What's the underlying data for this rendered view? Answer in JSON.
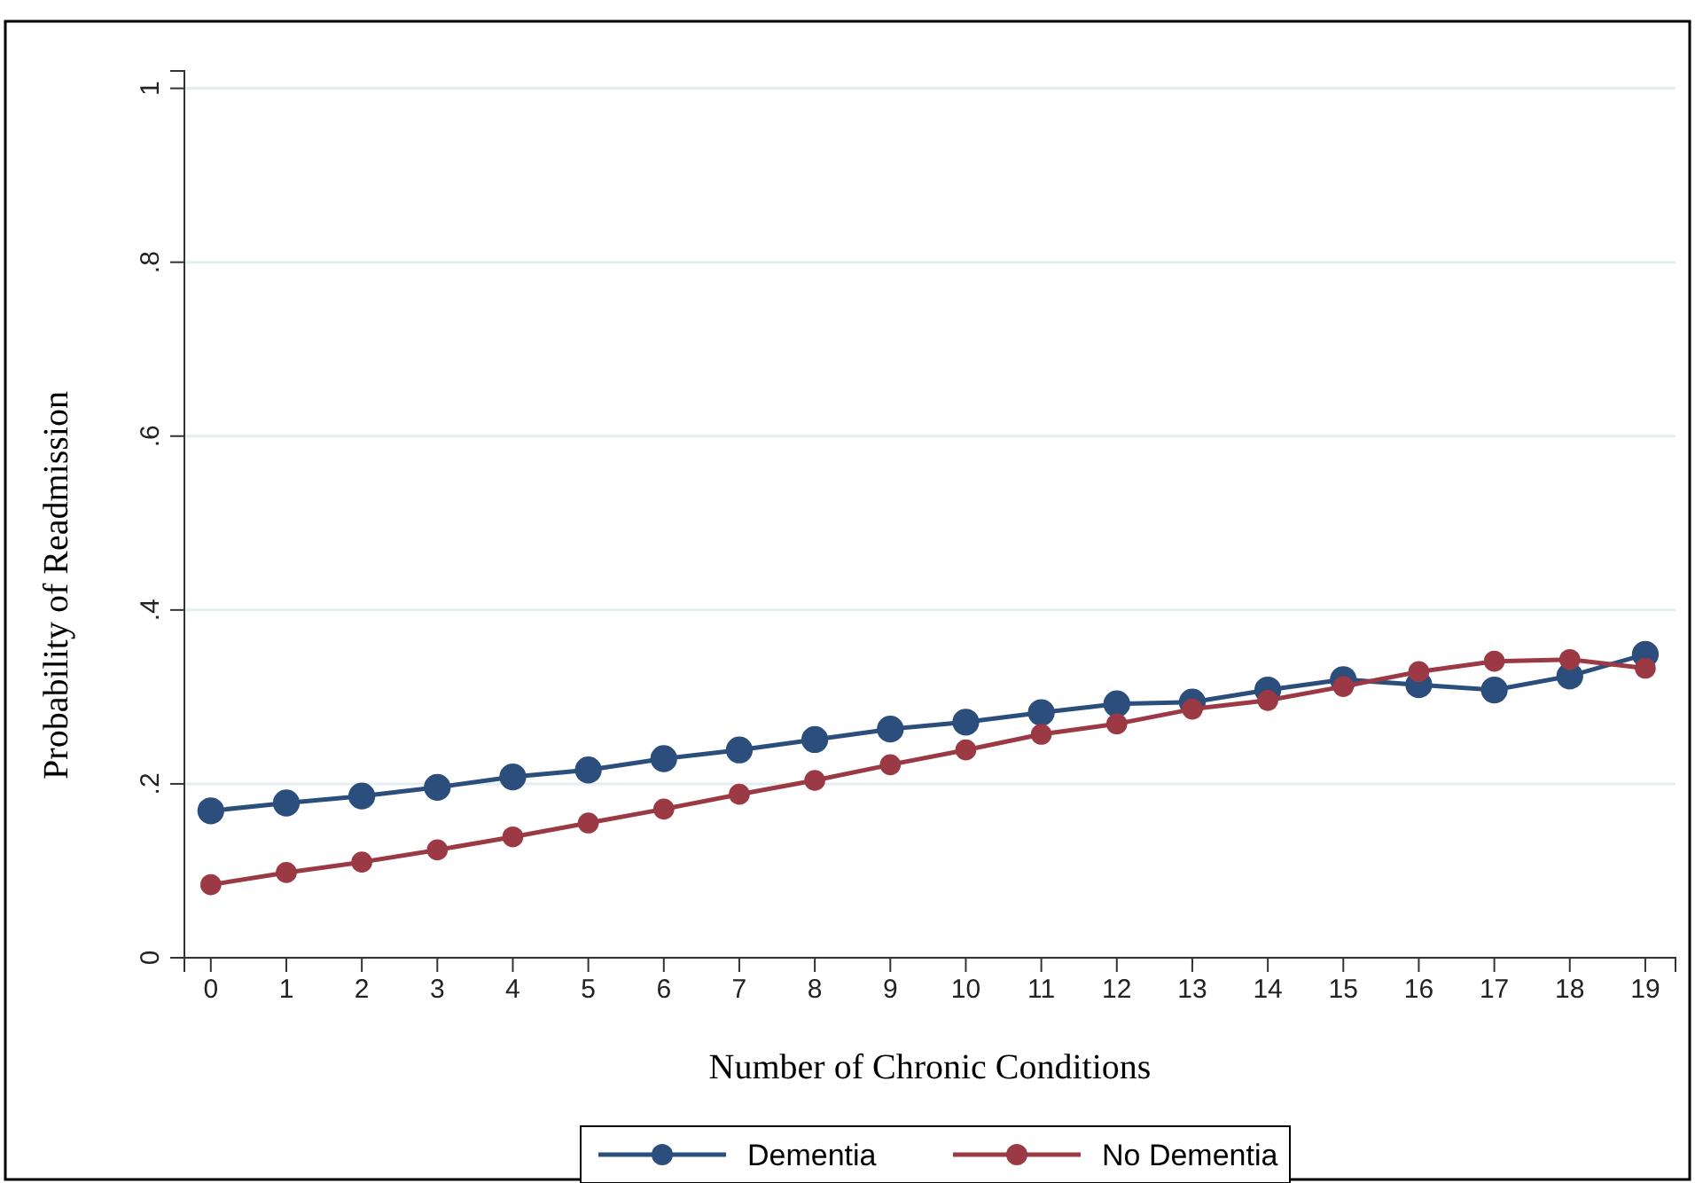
{
  "chart_data": {
    "type": "line",
    "xlabel": "Number of Chronic Conditions",
    "ylabel": "Probability of Readmission",
    "x": [
      0,
      1,
      2,
      3,
      4,
      5,
      6,
      7,
      8,
      9,
      10,
      11,
      12,
      13,
      14,
      15,
      16,
      17,
      18,
      19
    ],
    "xlim": [
      -0.35,
      19.4
    ],
    "xticks": [
      0,
      1,
      2,
      3,
      4,
      5,
      6,
      7,
      8,
      9,
      10,
      11,
      12,
      13,
      14,
      15,
      16,
      17,
      18,
      19
    ],
    "ylim": [
      0,
      1.02
    ],
    "yticks": [
      {
        "value": 0,
        "label": "0"
      },
      {
        "value": 0.2,
        "label": ".2"
      },
      {
        "value": 0.4,
        "label": ".4"
      },
      {
        "value": 0.6,
        "label": ".6"
      },
      {
        "value": 0.8,
        "label": ".8"
      },
      {
        "value": 1,
        "label": "1"
      }
    ],
    "grid": "y",
    "legend": "bottom",
    "marker": "circle",
    "line_style": "solid",
    "series": [
      {
        "name": "Dementia",
        "color": "#2b4e7c",
        "values": [
          0.169,
          0.178,
          0.186,
          0.196,
          0.208,
          0.216,
          0.229,
          0.239,
          0.251,
          0.263,
          0.271,
          0.282,
          0.292,
          0.294,
          0.308,
          0.32,
          0.314,
          0.308,
          0.324,
          0.349
        ]
      },
      {
        "name": "No Dementia",
        "color": "#9b3a44",
        "values": [
          0.084,
          0.098,
          0.11,
          0.124,
          0.139,
          0.155,
          0.171,
          0.188,
          0.204,
          0.222,
          0.239,
          0.257,
          0.269,
          0.286,
          0.296,
          0.312,
          0.329,
          0.341,
          0.343,
          0.333
        ]
      }
    ]
  }
}
